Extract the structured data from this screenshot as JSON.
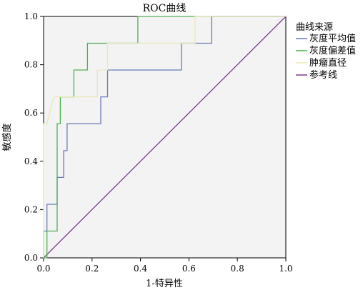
{
  "chart_data": {
    "type": "line",
    "title": "ROC曲线",
    "xlabel": "1-特异性",
    "ylabel": "敏感度",
    "xlim": [
      0,
      1
    ],
    "ylim": [
      0,
      1
    ],
    "xticks": [
      "0.0",
      "0.2",
      "0.4",
      "0.6",
      "0.8",
      "1.0"
    ],
    "yticks": [
      "0.0",
      "0.2",
      "0.4",
      "0.6",
      "0.8",
      "1.0"
    ],
    "grid": false,
    "legend": {
      "title": "曲线来源",
      "placement": "right"
    },
    "series": [
      {
        "name": "灰度平均值",
        "color": "#6a7ab8",
        "points": [
          [
            0,
            0
          ],
          [
            0,
            0.111
          ],
          [
            0.014,
            0.111
          ],
          [
            0.014,
            0.222
          ],
          [
            0.056,
            0.222
          ],
          [
            0.056,
            0.333
          ],
          [
            0.083,
            0.333
          ],
          [
            0.083,
            0.444
          ],
          [
            0.097,
            0.444
          ],
          [
            0.097,
            0.556
          ],
          [
            0.236,
            0.556
          ],
          [
            0.236,
            0.667
          ],
          [
            0.264,
            0.667
          ],
          [
            0.264,
            0.778
          ],
          [
            0.569,
            0.778
          ],
          [
            0.569,
            0.889
          ],
          [
            0.694,
            0.889
          ],
          [
            0.694,
            1
          ],
          [
            1,
            1
          ]
        ]
      },
      {
        "name": "灰度偏差值",
        "color": "#4caf50",
        "points": [
          [
            0,
            0
          ],
          [
            0.014,
            0
          ],
          [
            0.014,
            0.111
          ],
          [
            0.056,
            0.111
          ],
          [
            0.056,
            0.556
          ],
          [
            0.069,
            0.556
          ],
          [
            0.069,
            0.667
          ],
          [
            0.125,
            0.667
          ],
          [
            0.125,
            0.778
          ],
          [
            0.181,
            0.778
          ],
          [
            0.181,
            0.889
          ],
          [
            0.389,
            0.889
          ],
          [
            0.389,
            1
          ],
          [
            1,
            1
          ]
        ]
      },
      {
        "name": "肿瘤直径",
        "color": "#eae6b6",
        "points": [
          [
            0,
            0
          ],
          [
            0,
            0.556
          ],
          [
            0.014,
            0.556
          ],
          [
            0.042,
            0.667
          ],
          [
            0.222,
            0.667
          ],
          [
            0.222,
            0.778
          ],
          [
            0.264,
            0.778
          ],
          [
            0.264,
            0.889
          ],
          [
            0.625,
            0.889
          ],
          [
            0.625,
            1
          ],
          [
            1,
            1
          ]
        ]
      },
      {
        "name": "参考线",
        "color": "#7b3e8f",
        "points": [
          [
            0,
            0
          ],
          [
            1,
            1
          ]
        ]
      }
    ]
  }
}
